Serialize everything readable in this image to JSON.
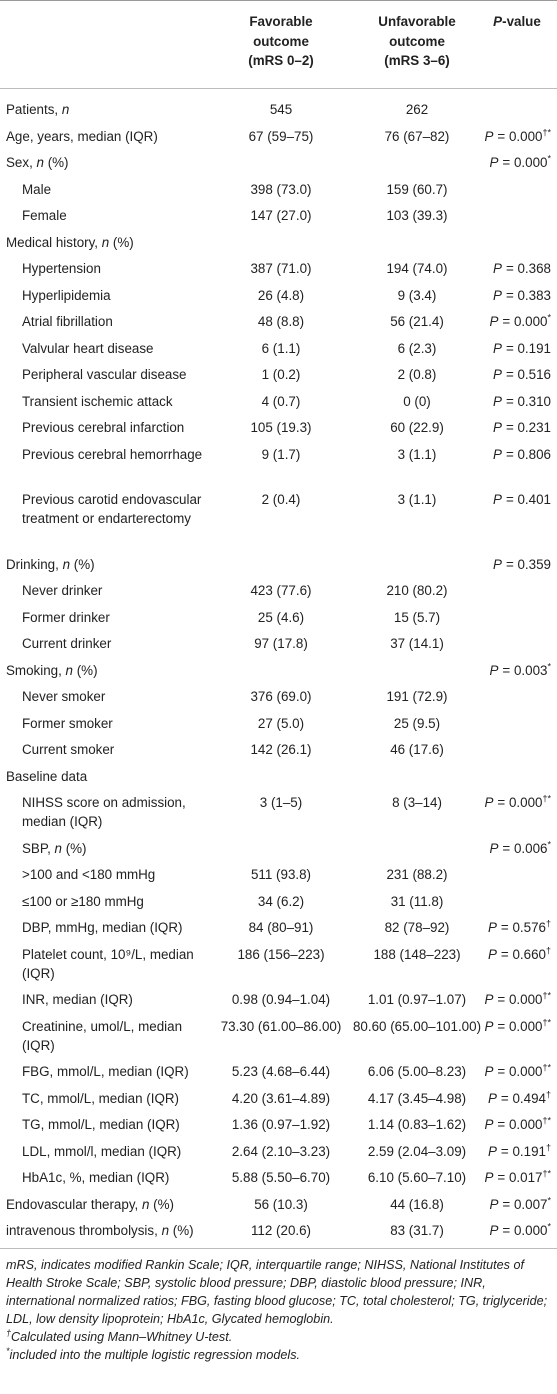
{
  "header": {
    "col_fav": [
      "Favorable",
      "outcome",
      "(mRS 0–2)"
    ],
    "col_unf": [
      "Unfavorable",
      "outcome",
      "(mRS 3–6)"
    ],
    "col_p_italic": "P",
    "col_p_rest": "-value"
  },
  "rows": [
    {
      "label": "Patients, ",
      "label_it": "n",
      "fav": "545",
      "unf": "262",
      "p": ""
    },
    {
      "label": "Age, years, median (IQR)",
      "fav": "67 (59–75)",
      "unf": "76 (67–82)",
      "p": "= 0.000",
      "sup": "†*"
    },
    {
      "label": "Sex, ",
      "label_it": "n",
      "label_tail": " (%)",
      "fav": "",
      "unf": "",
      "p": "= 0.000",
      "sup": "*"
    },
    {
      "label": "Male",
      "fav": "398 (73.0)",
      "unf": "159 (60.7)",
      "p": "",
      "indent": true
    },
    {
      "label": "Female",
      "fav": "147 (27.0)",
      "unf": "103 (39.3)",
      "p": "",
      "indent": true
    },
    {
      "label": "Medical history, ",
      "label_it": "n",
      "label_tail": " (%)",
      "fav": "",
      "unf": "",
      "p": ""
    },
    {
      "label": "Hypertension",
      "fav": "387 (71.0)",
      "unf": "194 (74.0)",
      "p": "= 0.368",
      "indent": true
    },
    {
      "label": "Hyperlipidemia",
      "fav": "26 (4.8)",
      "unf": "9 (3.4)",
      "p": "= 0.383",
      "indent": true
    },
    {
      "label": "Atrial fibrillation",
      "fav": "48 (8.8)",
      "unf": "56 (21.4)",
      "p": "= 0.000",
      "sup": "*",
      "indent": true
    },
    {
      "label": "Valvular heart disease",
      "fav": "6 (1.1)",
      "unf": "6 (2.3)",
      "p": "= 0.191",
      "indent": true
    },
    {
      "label": "Peripheral vascular disease",
      "fav": "1 (0.2)",
      "unf": "2 (0.8)",
      "p": "= 0.516",
      "indent": true
    },
    {
      "label": "Transient ischemic attack",
      "fav": "4 (0.7)",
      "unf": "0 (0)",
      "p": "= 0.310",
      "indent": true
    },
    {
      "label": "Previous cerebral infarction",
      "fav": "105 (19.3)",
      "unf": "60 (22.9)",
      "p": "= 0.231",
      "indent": true
    },
    {
      "label": "Previous cerebral hemorrhage",
      "fav": "9 (1.7)",
      "unf": "3 (1.1)",
      "p": "= 0.806",
      "indent": true,
      "lines": 2
    },
    {
      "label": "Previous carotid endovascular treatment or endarterectomy",
      "fav": "2 (0.4)",
      "unf": "3 (1.1)",
      "p": "= 0.401",
      "indent": true,
      "lines": 3
    },
    {
      "label": "Drinking, ",
      "label_it": "n",
      "label_tail": " (%)",
      "fav": "",
      "unf": "",
      "p": "= 0.359"
    },
    {
      "label": "Never drinker",
      "fav": "423 (77.6)",
      "unf": "210 (80.2)",
      "p": "",
      "indent": true
    },
    {
      "label": "Former drinker",
      "fav": "25 (4.6)",
      "unf": "15 (5.7)",
      "p": "",
      "indent": true
    },
    {
      "label": "Current drinker",
      "fav": "97 (17.8)",
      "unf": "37 (14.1)",
      "p": "",
      "indent": true
    },
    {
      "label": "Smoking, ",
      "label_it": "n",
      "label_tail": " (%)",
      "fav": "",
      "unf": "",
      "p": "= 0.003",
      "sup": "*"
    },
    {
      "label": "Never smoker",
      "fav": "376 (69.0)",
      "unf": "191 (72.9)",
      "p": "",
      "indent": true
    },
    {
      "label": "Former smoker",
      "fav": "27 (5.0)",
      "unf": "25 (9.5)",
      "p": "",
      "indent": true
    },
    {
      "label": "Current smoker",
      "fav": "142 (26.1)",
      "unf": "46 (17.6)",
      "p": "",
      "indent": true
    },
    {
      "label": "Baseline data",
      "fav": "",
      "unf": "",
      "p": ""
    },
    {
      "label": "NIHSS score on admission, median (IQR)",
      "fav": "3 (1–5)",
      "unf": "8 (3–14)",
      "p": "= 0.000",
      "sup": "†*",
      "indent": true,
      "lines": 2
    },
    {
      "label": "SBP, ",
      "label_it": "n",
      "label_tail": " (%)",
      "fav": "",
      "unf": "",
      "p": "= 0.006",
      "sup": "*",
      "indent": true
    },
    {
      "label": ">100 and <180 mmHg",
      "fav": "511 (93.8)",
      "unf": "231 (88.2)",
      "p": "",
      "indent": true
    },
    {
      "label": "≤100 or ≥180 mmHg",
      "fav": "34 (6.2)",
      "unf": "31 (11.8)",
      "p": "",
      "indent": true
    },
    {
      "label": "DBP, mmHg, median (IQR)",
      "fav": "84 (80–91)",
      "unf": "82 (78–92)",
      "p": "= 0.576",
      "sup": "†",
      "indent": true
    },
    {
      "label": "Platelet count, 10⁹/L, median (IQR)",
      "fav": "186 (156–223)",
      "unf": "188 (148–223)",
      "p": "= 0.660",
      "sup": "†",
      "indent": true,
      "lines": 2
    },
    {
      "label": "INR, median (IQR)",
      "fav": "0.98 (0.94–1.04)",
      "unf": "1.01 (0.97–1.07)",
      "p": "= 0.000",
      "sup": "†*",
      "indent": true
    },
    {
      "label": "Creatinine, umol/L, median (IQR)",
      "fav": "73.30 (61.00–86.00)",
      "unf": "80.60 (65.00–101.00)",
      "p": "= 0.000",
      "sup": "†*",
      "indent": true,
      "lines": 2
    },
    {
      "label": "FBG, mmol/L, median (IQR)",
      "fav": "5.23 (4.68–6.44)",
      "unf": "6.06 (5.00–8.23)",
      "p": "= 0.000",
      "sup": "†*",
      "indent": true
    },
    {
      "label": "TC, mmol/L, median (IQR)",
      "fav": "4.20 (3.61–4.89)",
      "unf": "4.17 (3.45–4.98)",
      "p": "= 0.494",
      "sup": "†",
      "indent": true
    },
    {
      "label": "TG, mmol/L, median (IQR)",
      "fav": "1.36 (0.97–1.92)",
      "unf": "1.14 (0.83–1.62)",
      "p": "= 0.000",
      "sup": "†*",
      "indent": true
    },
    {
      "label": "LDL, mmol/l, median (IQR)",
      "fav": "2.64 (2.10–3.23)",
      "unf": "2.59 (2.04–3.09)",
      "p": "= 0.191",
      "sup": "†",
      "indent": true
    },
    {
      "label": "HbA1c, %, median (IQR)",
      "fav": "5.88 (5.50–6.70)",
      "unf": "6.10 (5.60–7.10)",
      "p": "= 0.017",
      "sup": "†*",
      "indent": true
    },
    {
      "label": "Endovascular therapy, ",
      "label_it": "n",
      "label_tail": " (%)",
      "fav": "56 (10.3)",
      "unf": "44 (16.8)",
      "p": "= 0.007",
      "sup": "*"
    },
    {
      "label": "intravenous thrombolysis, ",
      "label_it": "n",
      "label_tail": " (%)",
      "fav": "112 (20.6)",
      "unf": "83 (31.7)",
      "p": "= 0.000",
      "sup": "*"
    }
  ],
  "p_prefix": "P",
  "footnotes": {
    "abbrev": "mRS, indicates modified Rankin Scale; IQR, interquartile range; NIHSS, National Institutes of Health Stroke Scale; SBP, systolic blood pressure; DBP, diastolic blood pressure; INR, international normalized ratios; FBG, fasting blood glucose; TC, total cholesterol; TG, triglyceride; LDL, low density lipoprotein; HbA1c, Glycated hemoglobin.",
    "dagger_mark": "†",
    "dagger": "Calculated using Mann–Whitney U-test.",
    "star_mark": "*",
    "star": "included into the multiple logistic regression models."
  }
}
